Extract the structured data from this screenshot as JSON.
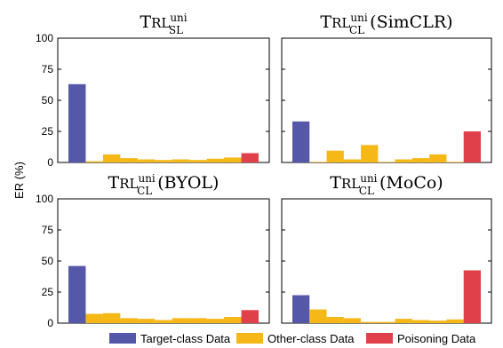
{
  "chart_data": {
    "type": "bar",
    "ylabel": "ER (%)",
    "ylim": [
      0,
      100
    ],
    "yticks": [
      "0",
      "25",
      "50",
      "75",
      "100"
    ],
    "series": [
      {
        "name": "Target-class Data",
        "color": "#5558a8"
      },
      {
        "name": "Other-class Data",
        "color": "#f5b817"
      },
      {
        "name": "Poisoning Data",
        "color": "#e0404a"
      }
    ],
    "legend_position": "bottom",
    "panels": [
      {
        "title_main": "T",
        "title_smallcaps": "RL",
        "title_sup": "uni",
        "title_sub": "SL",
        "title_suffix": "",
        "target": 63,
        "others": [
          1,
          6.5,
          3.5,
          2.5,
          2,
          2.5,
          2,
          3,
          4
        ],
        "poisoning": 7.5
      },
      {
        "title_main": "T",
        "title_smallcaps": "RL",
        "title_sup": "uni",
        "title_sub": "CL",
        "title_suffix": "(SimCLR)",
        "target": 33,
        "others": [
          0.5,
          9.5,
          2.5,
          14,
          0.5,
          2.5,
          3.5,
          6.5,
          0.5
        ],
        "poisoning": 25
      },
      {
        "title_main": "T",
        "title_smallcaps": "RL",
        "title_sup": "uni",
        "title_sub": "CL",
        "title_suffix": "(BYOL)",
        "target": 46,
        "others": [
          7.5,
          8,
          4,
          3.5,
          2.5,
          4,
          4,
          3.5,
          5
        ],
        "poisoning": 10.5
      },
      {
        "title_main": "T",
        "title_smallcaps": "RL",
        "title_sup": "uni",
        "title_sub": "CL",
        "title_suffix": "(MoCo)",
        "target": 22.5,
        "others": [
          11,
          5,
          4,
          1,
          1,
          3.5,
          2.5,
          2,
          3
        ],
        "poisoning": 42.5
      }
    ]
  }
}
